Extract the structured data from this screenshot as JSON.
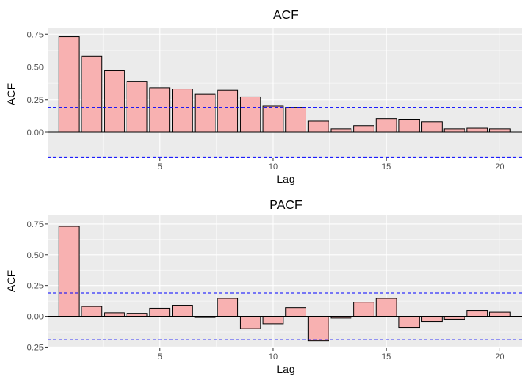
{
  "chart_data": [
    {
      "type": "bar",
      "title": "ACF",
      "xlabel": "Lag",
      "ylabel": "ACF",
      "x": [
        1,
        2,
        3,
        4,
        5,
        6,
        7,
        8,
        9,
        10,
        11,
        12,
        13,
        14,
        15,
        16,
        17,
        18,
        19,
        20
      ],
      "values": [
        0.73,
        0.58,
        0.47,
        0.39,
        0.34,
        0.33,
        0.29,
        0.32,
        0.27,
        0.2,
        0.19,
        0.085,
        0.025,
        0.05,
        0.105,
        0.1,
        0.08,
        0.025,
        0.03,
        0.025
      ],
      "xlim": [
        0.05,
        21.0
      ],
      "ylim": [
        -0.2,
        0.8
      ],
      "xticks": [
        5,
        10,
        15,
        20
      ],
      "xtick_labels": [
        "5",
        "10",
        "15",
        "20"
      ],
      "yticks": [
        0,
        0.25,
        0.5,
        0.75
      ],
      "ytick_labels": [
        "0.00",
        "0.25",
        "0.50",
        "0.75"
      ],
      "conf_bounds": [
        0.19,
        -0.19
      ],
      "colors": {
        "bar_fill": "#f8b1b1",
        "bar_stroke": "#000000",
        "conf_line": "#0000ff",
        "panel_bg": "#ebebeb"
      },
      "grid": true
    },
    {
      "type": "bar",
      "title": "PACF",
      "xlabel": "Lag",
      "ylabel": "ACF",
      "x": [
        1,
        2,
        3,
        4,
        5,
        6,
        7,
        8,
        9,
        10,
        11,
        12,
        13,
        14,
        15,
        16,
        17,
        18,
        19,
        20
      ],
      "values": [
        0.73,
        0.08,
        0.03,
        0.025,
        0.065,
        0.09,
        -0.01,
        0.145,
        -0.1,
        -0.06,
        0.07,
        -0.2,
        -0.015,
        0.115,
        0.145,
        -0.09,
        -0.045,
        -0.025,
        0.045,
        0.035
      ],
      "xlim": [
        0.05,
        21.0
      ],
      "ylim": [
        -0.26,
        0.82
      ],
      "xticks": [
        5,
        10,
        15,
        20
      ],
      "xtick_labels": [
        "5",
        "10",
        "15",
        "20"
      ],
      "yticks": [
        -0.25,
        0,
        0.25,
        0.5,
        0.75
      ],
      "ytick_labels": [
        "-0.25",
        "0.00",
        "0.25",
        "0.50",
        "0.75"
      ],
      "conf_bounds": [
        0.19,
        -0.19
      ],
      "colors": {
        "bar_fill": "#f8b1b1",
        "bar_stroke": "#000000",
        "conf_line": "#0000ff",
        "panel_bg": "#ebebeb"
      },
      "grid": true
    }
  ]
}
